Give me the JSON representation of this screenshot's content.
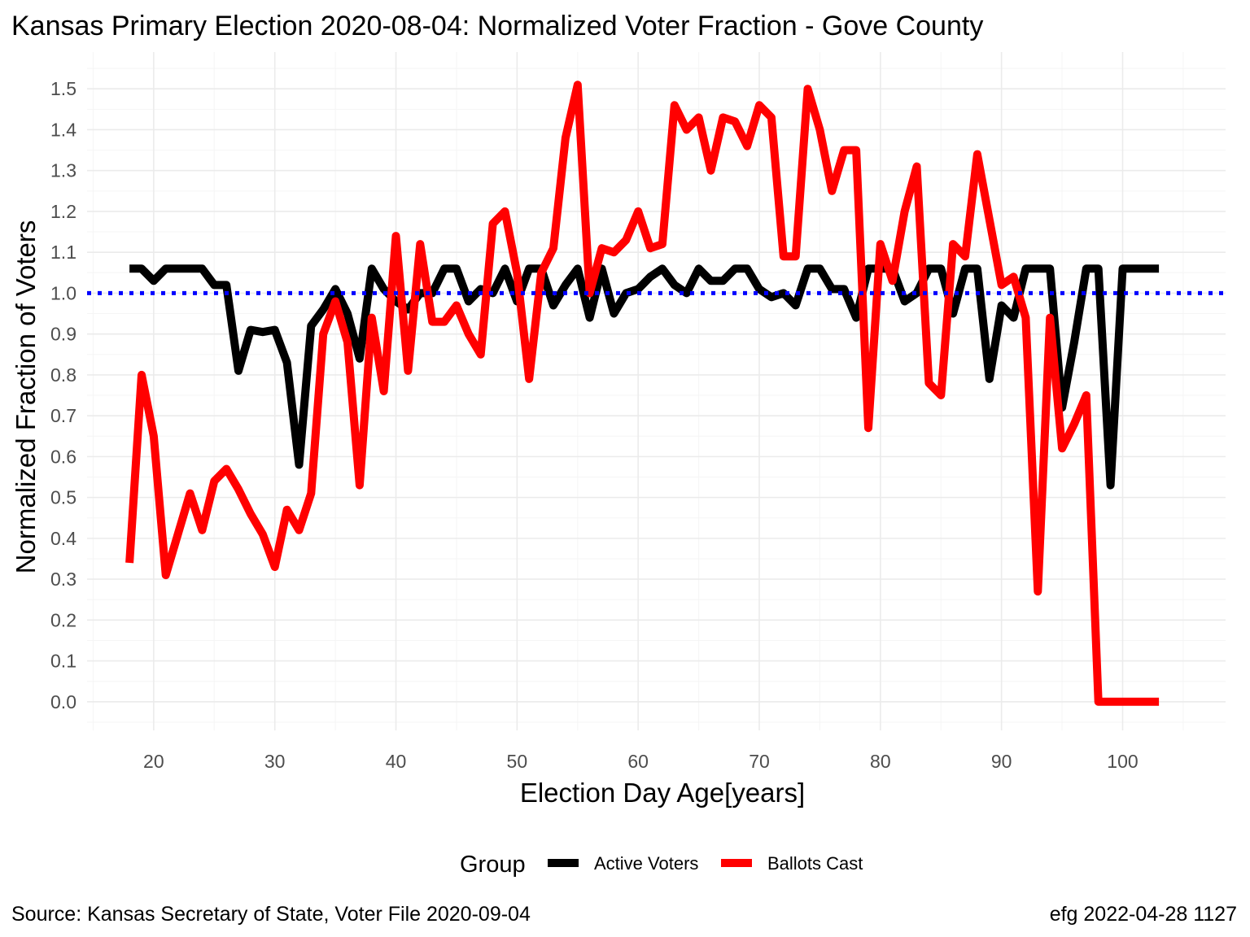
{
  "chart_data": {
    "type": "line",
    "title": "Kansas Primary Election 2020-08-04:  Normalized Voter Fraction - Gove County",
    "xlabel": "Election Day Age[years]",
    "ylabel": "Normalized Fraction of Voters",
    "xlim": [
      14.5,
      108.5
    ],
    "ylim": [
      -0.07,
      1.59
    ],
    "x_ticks": [
      20,
      30,
      40,
      50,
      60,
      70,
      80,
      90,
      100
    ],
    "y_ticks": [
      0.0,
      0.1,
      0.2,
      0.3,
      0.4,
      0.5,
      0.6,
      0.7,
      0.8,
      0.9,
      1.0,
      1.1,
      1.2,
      1.3,
      1.4,
      1.5
    ],
    "y_tick_labels": [
      "0.0",
      "0.1",
      "0.2",
      "0.3",
      "0.4",
      "0.5",
      "0.6",
      "0.7",
      "0.8",
      "0.9",
      "1.0",
      "1.1",
      "1.2",
      "1.3",
      "1.4",
      "1.5"
    ],
    "reference_line": {
      "y": 1.0,
      "color": "#0000ff",
      "style": "dotted"
    },
    "grid": true,
    "legend": {
      "title": "Group",
      "position": "bottom"
    },
    "series": [
      {
        "name": "Active Voters",
        "color": "#000000",
        "x": [
          18,
          19,
          20,
          21,
          22,
          23,
          24,
          25,
          26,
          27,
          28,
          29,
          30,
          31,
          32,
          33,
          34,
          35,
          36,
          37,
          38,
          39,
          40,
          41,
          42,
          43,
          44,
          45,
          46,
          47,
          48,
          49,
          50,
          51,
          52,
          53,
          54,
          55,
          56,
          57,
          58,
          59,
          60,
          61,
          62,
          63,
          64,
          65,
          66,
          67,
          68,
          69,
          70,
          71,
          72,
          73,
          74,
          75,
          76,
          77,
          78,
          79,
          80,
          81,
          82,
          83,
          84,
          85,
          86,
          87,
          88,
          89,
          90,
          91,
          92,
          93,
          94,
          95,
          96,
          97,
          98,
          99,
          100,
          101,
          102,
          103
        ],
        "values": [
          1.06,
          1.06,
          1.03,
          1.06,
          1.06,
          1.06,
          1.06,
          1.02,
          1.02,
          0.81,
          0.91,
          0.905,
          0.91,
          0.83,
          0.58,
          0.92,
          0.96,
          1.01,
          0.95,
          0.84,
          1.06,
          1.01,
          0.98,
          0.96,
          1.0,
          1.0,
          1.06,
          1.06,
          0.98,
          1.01,
          1.0,
          1.06,
          0.98,
          1.06,
          1.06,
          0.97,
          1.02,
          1.06,
          0.94,
          1.06,
          0.95,
          1.0,
          1.01,
          1.04,
          1.06,
          1.02,
          1.0,
          1.06,
          1.03,
          1.03,
          1.06,
          1.06,
          1.01,
          0.99,
          1.0,
          0.97,
          1.06,
          1.06,
          1.01,
          1.01,
          0.94,
          1.06,
          1.06,
          1.06,
          0.98,
          1.0,
          1.06,
          1.06,
          0.95,
          1.06,
          1.06,
          0.79,
          0.97,
          0.94,
          1.06,
          1.06,
          1.06,
          0.72,
          0.88,
          1.06,
          1.06,
          0.53,
          1.06,
          1.06,
          1.06,
          1.06
        ]
      },
      {
        "name": "Ballots Cast",
        "color": "#ff0000",
        "x": [
          18,
          19,
          20,
          21,
          22,
          23,
          24,
          25,
          26,
          27,
          28,
          29,
          30,
          31,
          32,
          33,
          34,
          35,
          36,
          37,
          38,
          39,
          40,
          41,
          42,
          43,
          44,
          45,
          46,
          47,
          48,
          49,
          50,
          51,
          52,
          53,
          54,
          55,
          56,
          57,
          58,
          59,
          60,
          61,
          62,
          63,
          64,
          65,
          66,
          67,
          68,
          69,
          70,
          71,
          72,
          73,
          74,
          75,
          76,
          77,
          78,
          79,
          80,
          81,
          82,
          83,
          84,
          85,
          86,
          87,
          88,
          89,
          90,
          91,
          92,
          93,
          94,
          95,
          96,
          97,
          98,
          99,
          100,
          101,
          102,
          103
        ],
        "values": [
          0.34,
          0.8,
          0.65,
          0.31,
          0.41,
          0.51,
          0.42,
          0.54,
          0.57,
          0.52,
          0.46,
          0.41,
          0.33,
          0.47,
          0.42,
          0.51,
          0.9,
          0.98,
          0.88,
          0.53,
          0.94,
          0.76,
          1.14,
          0.81,
          1.12,
          0.93,
          0.93,
          0.97,
          0.9,
          0.85,
          1.17,
          1.2,
          1.05,
          0.79,
          1.05,
          1.11,
          1.38,
          1.51,
          1.0,
          1.11,
          1.1,
          1.13,
          1.2,
          1.11,
          1.12,
          1.46,
          1.4,
          1.43,
          1.3,
          1.43,
          1.42,
          1.36,
          1.46,
          1.43,
          1.09,
          1.09,
          1.5,
          1.4,
          1.25,
          1.35,
          1.35,
          0.67,
          1.12,
          1.03,
          1.2,
          1.31,
          0.78,
          0.75,
          1.12,
          1.09,
          1.34,
          1.18,
          1.02,
          1.04,
          0.94,
          0.27,
          0.94,
          0.62,
          0.68,
          0.75,
          0.0,
          0.0,
          0.0,
          0.0,
          0.0,
          0.0
        ]
      }
    ]
  },
  "caption": {
    "left": "Source:  Kansas Secretary of State, Voter File  2020-09-04",
    "right": "efg 2022-04-28 1127"
  }
}
